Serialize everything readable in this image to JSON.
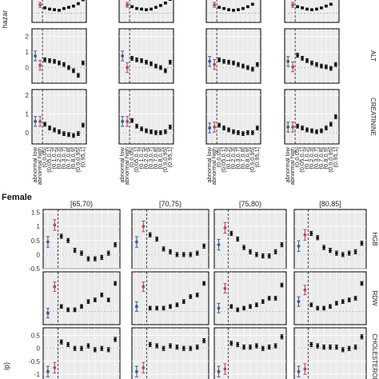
{
  "figure": {
    "colors": {
      "abnormal_low": "#3b5b92",
      "abnormal_high": "#b5475e",
      "normal": "#111111",
      "panel_bg": "#ebebeb",
      "grid": "#ffffff",
      "frame": "#222222"
    },
    "y_axis_partial_label": "hazar",
    "x_tick_labels": [
      "abnormal low",
      "abnormal high",
      "(0,0.05]",
      "(0.05,0.1]",
      "(0.1,0.2]",
      "(0.2,0.3]",
      "(0.3,0.7]",
      "(0.7,0.8]",
      "(0.8,0.9]",
      "(0.9,0.95]",
      "(0.95,1]"
    ],
    "female_label": "Female",
    "strip_y_partial": "ip)"
  },
  "chart_data": [
    {
      "type": "scatter",
      "block": "male-top",
      "note": "error bar point estimates by category",
      "age_groups": [
        "",
        "",
        "",
        ""
      ],
      "rows": [
        {
          "label": "",
          "ylim": [
            -0.3,
            0.6
          ],
          "yticks": [],
          "series": [
            [
              0.55,
              0.28,
              0.18,
              0.14,
              0.12,
              0.1,
              0.16,
              0.2,
              0.24,
              0.32,
              0.45
            ],
            [
              0.55,
              0.28,
              0.22,
              0.16,
              0.14,
              0.12,
              0.14,
              0.2,
              0.26,
              0.34,
              0.46
            ],
            [
              0.55,
              0.28,
              0.2,
              0.16,
              0.12,
              0.1,
              0.12,
              0.16,
              0.22,
              0.3,
              0.5
            ],
            [
              0.55,
              0.28,
              0.22,
              0.18,
              0.14,
              0.12,
              0.14,
              0.18,
              0.24,
              0.3,
              0.5
            ]
          ]
        },
        {
          "label": "ALT",
          "ylim": [
            -1,
            2.5
          ],
          "yticks": [
            0,
            1,
            2
          ],
          "series": [
            [
              0.75,
              0.15,
              0.5,
              0.45,
              0.4,
              0.3,
              0.2,
              0.0,
              -0.2,
              -0.5,
              0.3
            ],
            [
              0.75,
              0.0,
              0.6,
              0.5,
              0.45,
              0.35,
              0.25,
              0.1,
              0.0,
              -0.2,
              0.35
            ],
            [
              0.4,
              0.2,
              0.5,
              0.4,
              0.35,
              0.3,
              0.2,
              0.1,
              0.0,
              -0.1,
              0.2
            ],
            [
              0.4,
              0.05,
              0.8,
              0.6,
              0.45,
              0.3,
              0.2,
              0.1,
              0.05,
              -0.05,
              0.2
            ]
          ]
        },
        {
          "label": "CREATININE",
          "ylim": [
            -0.6,
            2.3
          ],
          "yticks": [
            0,
            1,
            2
          ],
          "series": [
            [
              0.6,
              0.6,
              0.45,
              0.25,
              0.15,
              0.05,
              -0.05,
              -0.1,
              -0.15,
              -0.05,
              0.4
            ],
            [
              0.6,
              0.6,
              0.65,
              0.35,
              0.2,
              0.1,
              0.05,
              0.0,
              0.0,
              0.05,
              0.3
            ],
            [
              0.25,
              0.3,
              0.4,
              0.25,
              0.15,
              0.05,
              0.0,
              -0.05,
              0.0,
              0.0,
              0.25
            ],
            [
              0.3,
              0.3,
              0.35,
              0.25,
              0.15,
              0.1,
              0.05,
              0.1,
              0.25,
              0.45,
              0.85
            ]
          ]
        }
      ]
    },
    {
      "type": "scatter",
      "block": "female-bottom",
      "note": "error bar point estimates by category",
      "age_groups": [
        "[65,70)",
        "[70,75)",
        "[75,80)",
        "[80,85]"
      ],
      "rows": [
        {
          "label": "HGB",
          "ylim": [
            -0.5,
            1.6
          ],
          "yticks": [
            -0.5,
            0.0,
            0.5,
            1.0,
            1.5
          ],
          "series": [
            [
              0.45,
              1.05,
              0.65,
              0.5,
              0.15,
              0.05,
              -0.15,
              -0.15,
              -0.1,
              0.05,
              0.35
            ],
            [
              0.45,
              1.0,
              0.7,
              0.55,
              0.2,
              0.1,
              0.0,
              0.0,
              0.0,
              0.05,
              0.3
            ],
            [
              0.35,
              0.95,
              0.75,
              0.55,
              0.25,
              0.1,
              0.0,
              -0.05,
              -0.05,
              0.1,
              0.35
            ],
            [
              0.3,
              0.7,
              0.75,
              0.6,
              0.25,
              0.15,
              0.05,
              0.0,
              0.05,
              0.1,
              0.4
            ]
          ]
        },
        {
          "label": "RDW",
          "ylim": [
            -0.4,
            1.2
          ],
          "yticks": [],
          "series": [
            [
              -0.05,
              0.75,
              0.15,
              0.05,
              0.05,
              0.15,
              0.3,
              0.35,
              0.5,
              0.35,
              0.85
            ],
            [
              0.15,
              0.75,
              0.1,
              0.1,
              0.1,
              0.15,
              0.2,
              0.3,
              0.45,
              0.5,
              0.85
            ],
            [
              0.1,
              0.7,
              0.15,
              0.05,
              0.1,
              0.15,
              0.2,
              0.3,
              0.4,
              0.4,
              0.8
            ],
            [
              0.3,
              0.65,
              0.2,
              0.1,
              0.1,
              0.15,
              0.25,
              0.3,
              0.35,
              0.4,
              0.85
            ]
          ]
        },
        {
          "label": "CHOLESTEROL",
          "ylim": [
            -1.5,
            0.8
          ],
          "yticks": [
            -1.5,
            -1.0,
            -0.5,
            0.0,
            0.5
          ],
          "series": [
            [
              -0.9,
              -0.75,
              0.25,
              0.15,
              0.0,
              0.0,
              0.1,
              -0.05,
              0.0,
              -0.05,
              0.35
            ],
            [
              -0.9,
              -0.75,
              0.15,
              0.1,
              0.0,
              0.1,
              0.05,
              0.0,
              0.0,
              0.05,
              0.3
            ],
            [
              -0.9,
              -0.8,
              0.2,
              0.15,
              0.05,
              0.05,
              0.1,
              0.0,
              0.05,
              0.1,
              0.45
            ],
            [
              -0.9,
              -0.8,
              0.15,
              0.1,
              0.05,
              0.05,
              0.05,
              -0.05,
              0.0,
              0.05,
              0.45
            ]
          ]
        }
      ]
    }
  ]
}
